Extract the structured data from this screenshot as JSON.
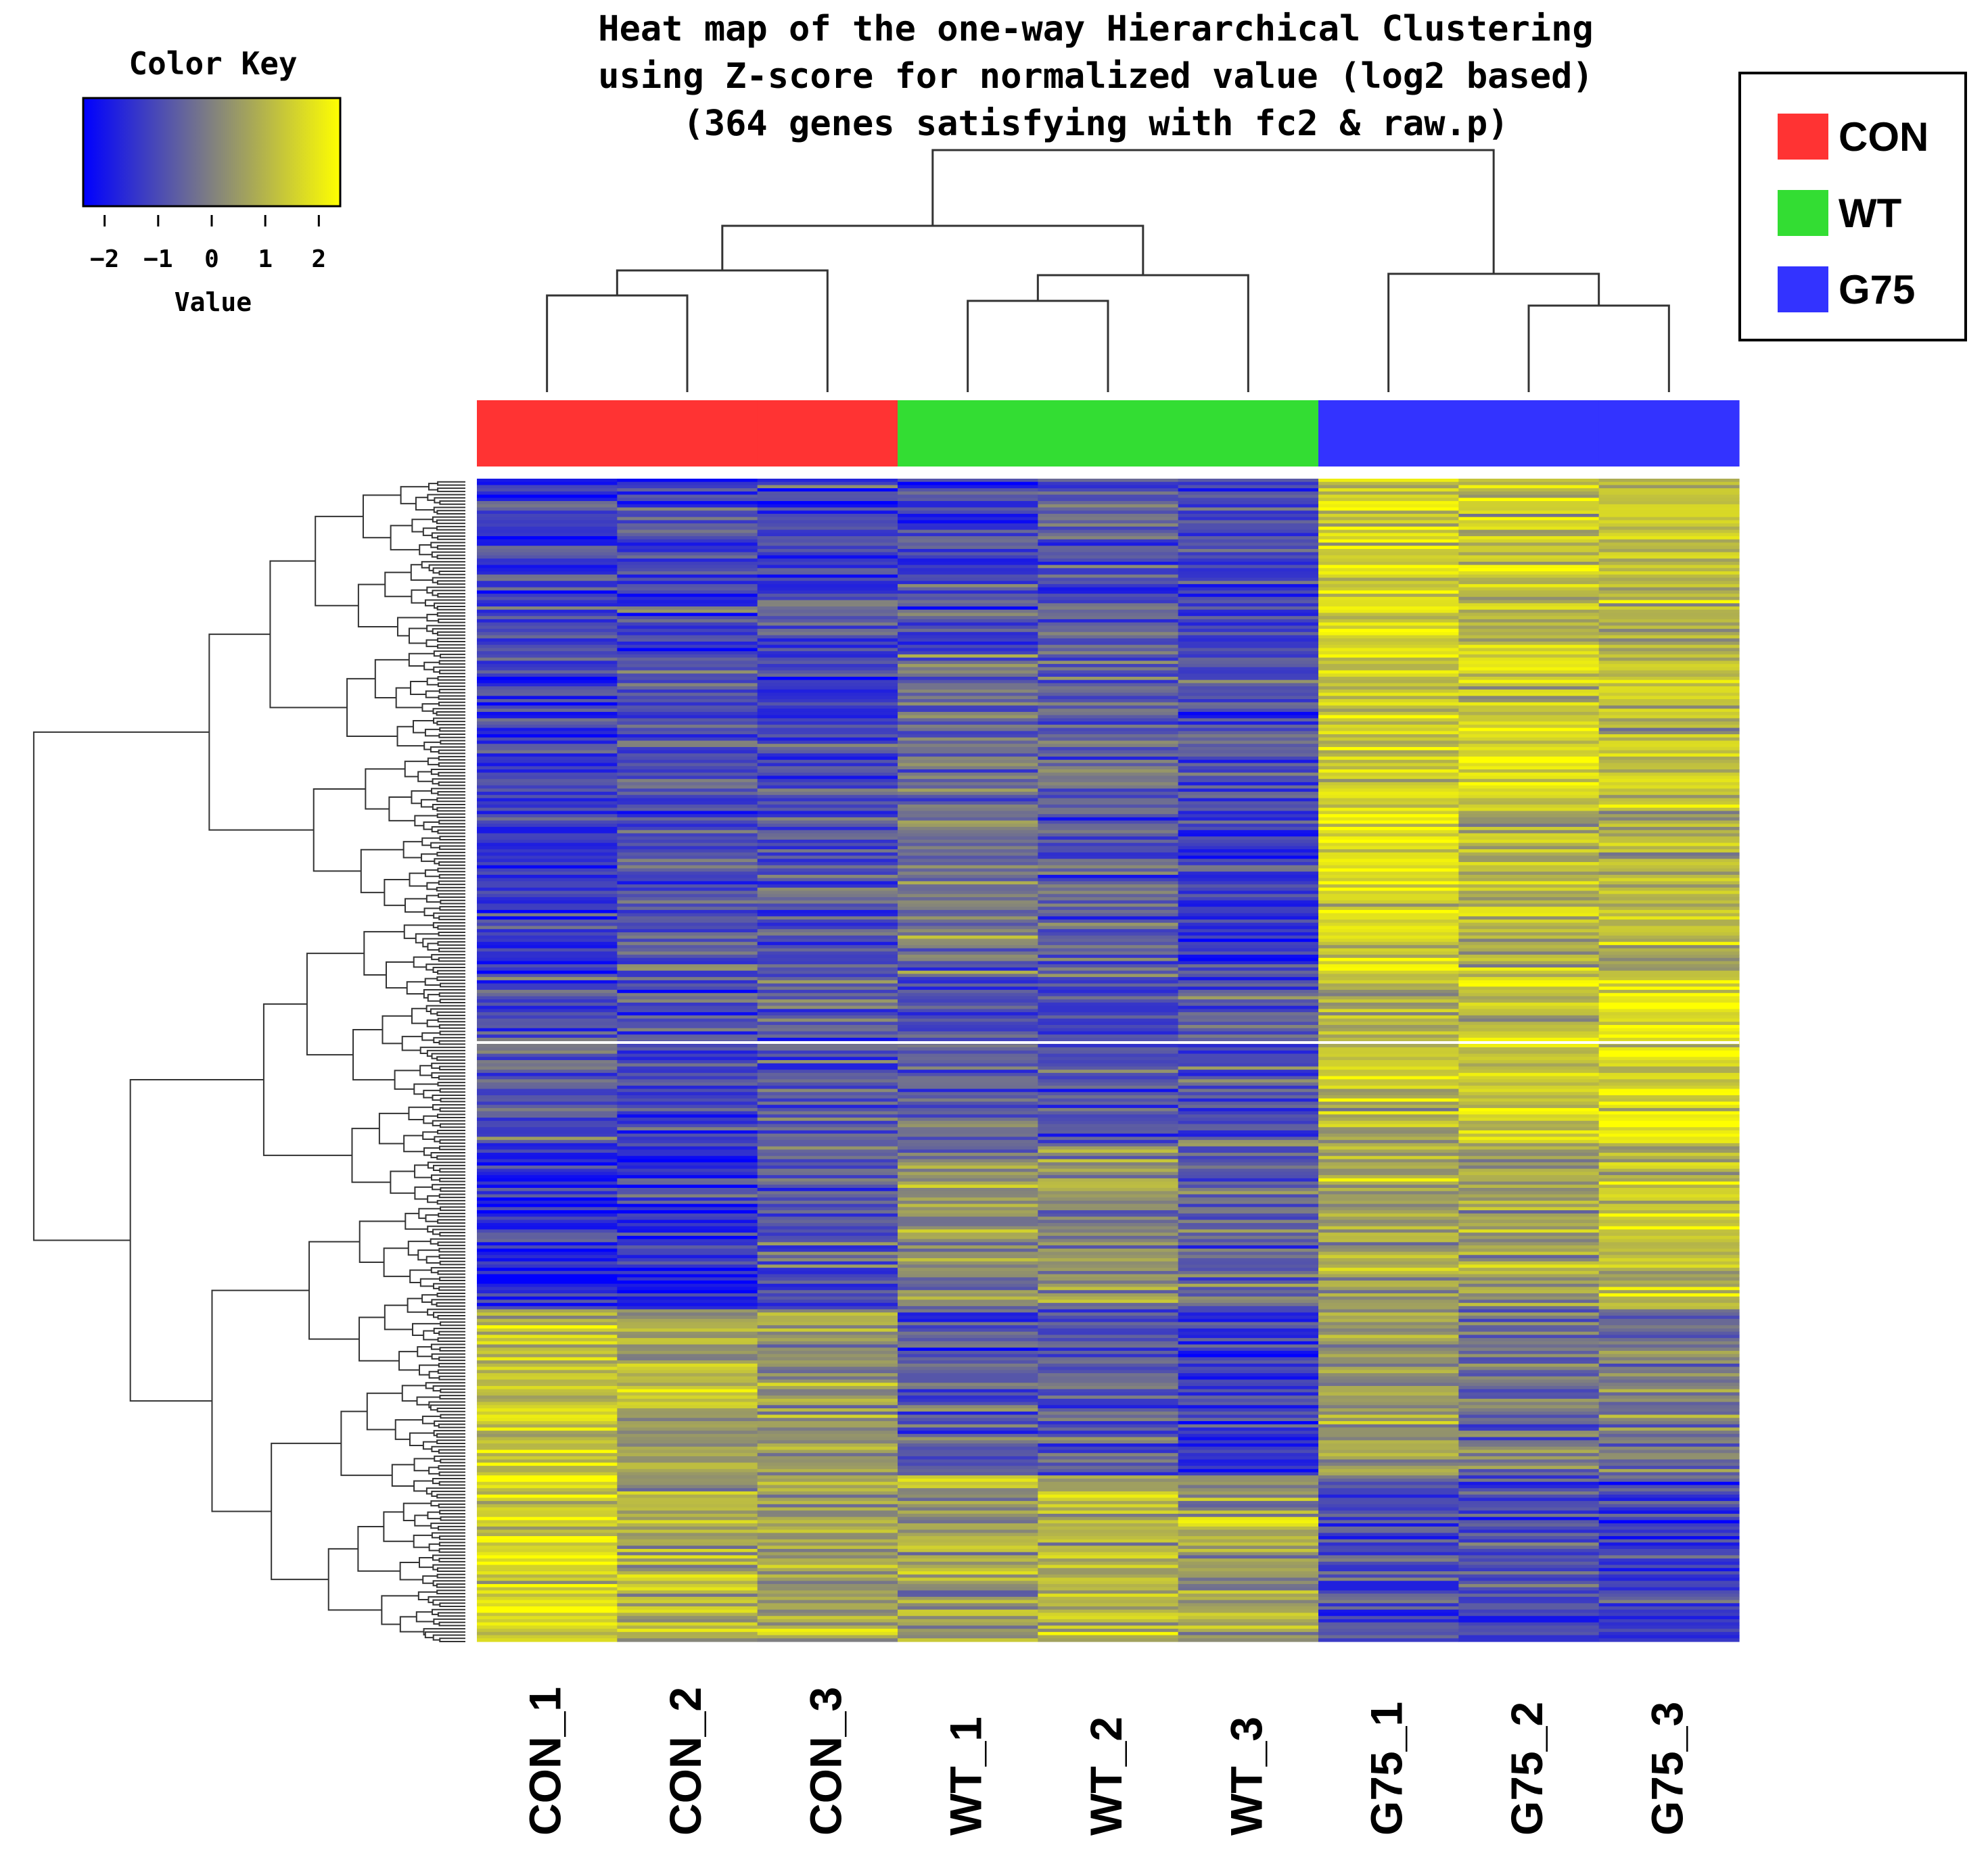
{
  "chart_data": {
    "type": "heatmap",
    "title_lines": [
      "Heat map of the one-way Hierarchical Clustering",
      "using Z-score for normalized value (log2 based)",
      "(364 genes satisfying with fc2 & raw.p)"
    ],
    "color_key": {
      "title": "Color Key",
      "xlabel": "Value",
      "range": [
        -2.4,
        2.4
      ],
      "ticks": [
        -2,
        -1,
        0,
        1,
        2
      ],
      "tick_labels": [
        "−2",
        "−1",
        "0",
        "1",
        "2"
      ],
      "colors": {
        "low": "#0000ff",
        "mid": "#808080",
        "high": "#ffff00"
      }
    },
    "legend": [
      {
        "label": "CON",
        "color": "#ff3333"
      },
      {
        "label": "WT",
        "color": "#33dd33"
      },
      {
        "label": "G75",
        "color": "#3333ff"
      }
    ],
    "columns": [
      "CON_1",
      "CON_2",
      "CON_3",
      "WT_1",
      "WT_2",
      "WT_3",
      "G75_1",
      "G75_2",
      "G75_3"
    ],
    "column_groups": [
      "CON",
      "CON",
      "CON",
      "WT",
      "WT",
      "WT",
      "G75",
      "G75",
      "G75"
    ],
    "n_genes": 364,
    "row_segment_means": [
      [
        -1.3,
        -1.1,
        -1.2,
        -1.0,
        -0.9,
        -1.0,
        1.5,
        1.3,
        1.2
      ],
      [
        -1.2,
        -1.0,
        -1.1,
        -0.5,
        -0.4,
        -0.8,
        1.4,
        1.6,
        1.1
      ],
      [
        -1.4,
        -0.9,
        -0.8,
        -0.2,
        -0.5,
        -1.2,
        1.8,
        1.0,
        0.8
      ],
      [
        -0.8,
        -1.0,
        -0.6,
        -0.7,
        -1.0,
        -0.9,
        1.2,
        1.5,
        1.7
      ],
      [
        -1.5,
        -1.4,
        -0.7,
        0.2,
        0.3,
        -0.5,
        0.8,
        0.5,
        1.2
      ],
      [
        1.2,
        0.8,
        0.4,
        -1.0,
        -0.7,
        -1.3,
        0.4,
        -0.2,
        -0.1
      ],
      [
        1.6,
        0.9,
        0.7,
        0.6,
        0.9,
        0.7,
        -1.0,
        -0.8,
        -1.2
      ]
    ]
  }
}
